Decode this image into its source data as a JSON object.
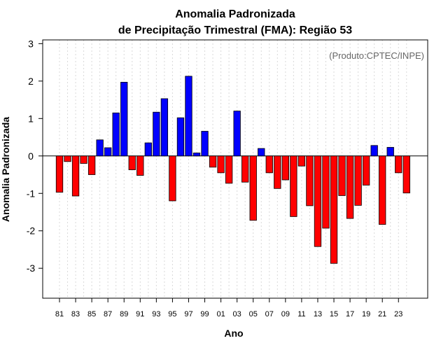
{
  "chart_data": {
    "type": "bar",
    "title": "Anomalia Padronizada",
    "subtitle": "de Precipitação Trimestral (FMA): Região 53",
    "xlabel": "Ano",
    "ylabel": "Anomalia Padronizada",
    "annotation": "(Produto:CPTEC/INPE)",
    "ylim": [
      -3.8,
      3.1
    ],
    "yticks": [
      -3,
      -2,
      -1,
      0,
      1,
      2,
      3
    ],
    "ytick_labels": [
      "-3",
      "-2",
      "-1",
      "0",
      "1",
      "2",
      "3"
    ],
    "grid": "vertical dotted",
    "positive_color": "#0000ff",
    "negative_color": "#ff0000",
    "years": [
      "81",
      "82",
      "83",
      "84",
      "85",
      "86",
      "87",
      "88",
      "89",
      "90",
      "91",
      "92",
      "93",
      "94",
      "95",
      "96",
      "97",
      "98",
      "99",
      "00",
      "01",
      "02",
      "03",
      "04",
      "05",
      "06",
      "07",
      "08",
      "09",
      "10",
      "11",
      "12",
      "13",
      "14",
      "15",
      "16",
      "17",
      "18",
      "19",
      "20",
      "21",
      "22",
      "23",
      "24"
    ],
    "xtick_labels": [
      "81",
      "83",
      "85",
      "87",
      "89",
      "91",
      "93",
      "95",
      "97",
      "99",
      "01",
      "03",
      "05",
      "07",
      "09",
      "11",
      "13",
      "15",
      "17",
      "19",
      "21",
      "23"
    ],
    "values": [
      -0.97,
      -0.15,
      -1.07,
      -0.2,
      -0.5,
      0.43,
      0.22,
      1.15,
      1.97,
      -0.37,
      -0.52,
      0.35,
      1.17,
      1.53,
      -1.2,
      1.02,
      2.13,
      0.08,
      0.66,
      -0.3,
      -0.45,
      -0.73,
      1.2,
      -0.7,
      -1.72,
      0.2,
      -0.45,
      -0.87,
      -0.64,
      -1.62,
      -0.27,
      -1.33,
      -2.42,
      -1.93,
      -2.87,
      -1.06,
      -1.67,
      -1.32,
      -0.78,
      0.28,
      -1.83,
      0.23,
      -0.45,
      -0.99
    ]
  }
}
